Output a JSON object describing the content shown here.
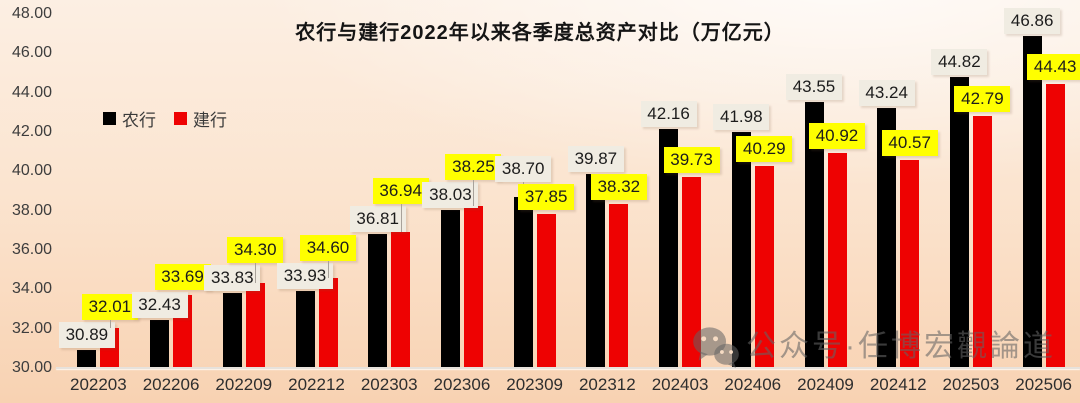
{
  "chart_data": {
    "type": "bar",
    "title": "农行与建行2022年以来各季度总资产对比（万亿元）",
    "categories": [
      "202203",
      "202206",
      "202209",
      "202212",
      "202303",
      "202306",
      "202309",
      "202312",
      "202403",
      "202406",
      "202409",
      "202412",
      "202503",
      "202506"
    ],
    "series": [
      {
        "name": "农行",
        "color": "#000000",
        "label_bg": "#f0ece2",
        "values": [
          30.89,
          32.43,
          33.83,
          33.93,
          36.81,
          38.03,
          38.7,
          39.87,
          42.16,
          41.98,
          43.55,
          43.24,
          44.82,
          46.86
        ]
      },
      {
        "name": "建行",
        "color": "#ee0202",
        "label_bg": "#ffff00",
        "values": [
          32.01,
          33.69,
          34.3,
          34.6,
          36.94,
          38.25,
          37.85,
          38.32,
          39.73,
          40.29,
          40.92,
          40.57,
          42.79,
          44.43
        ]
      }
    ],
    "ylim": [
      30,
      48
    ],
    "ytick_step": 2,
    "ytick_labels": [
      "30.00",
      "32.00",
      "34.00",
      "36.00",
      "38.00",
      "40.00",
      "42.00",
      "44.00",
      "46.00",
      "48.00"
    ],
    "grid": false,
    "legend_position": "upper-left",
    "value_label_decimals": 2
  },
  "watermark": {
    "text": "公众号·任博宏觀論道",
    "icon": "wechat-icon"
  },
  "colors": {
    "background_top": "#fcefe3",
    "background_bottom": "#f8d2b2",
    "axis_line": "#e7e2dc",
    "tick_text": "#3d3d3d",
    "nonghang_label_bg": "#f0ece2",
    "jianhang_label_bg": "#ffff00"
  }
}
